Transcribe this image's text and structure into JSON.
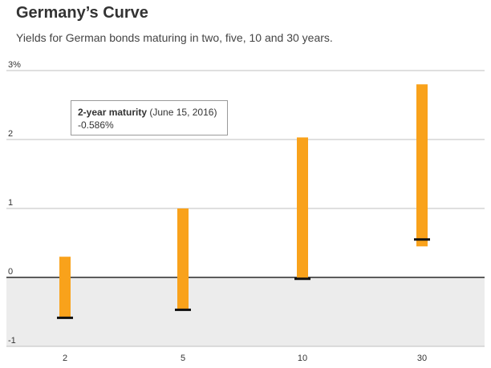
{
  "header": {
    "title": "Germany’s Curve",
    "subtitle": "Yields for German bonds maturing in two, five, 10 and 30 years."
  },
  "tooltip": {
    "label": "2-year maturity",
    "date": "(June 15, 2016)",
    "value": "-0.586%"
  },
  "colors": {
    "range_bar": "#f9a21b",
    "marker": "#111111",
    "negative_band": "#ececec",
    "gridline": "#bfbfbf",
    "zero_line": "#000000"
  },
  "chart_data": {
    "type": "bar",
    "subtype": "range-with-marker",
    "title": "Germany’s Curve",
    "subtitle": "Yields for German bonds maturing in two, five, 10 and 30 years.",
    "categories": [
      "2",
      "5",
      "10",
      "30"
    ],
    "series": [
      {
        "field": "low",
        "values": [
          -0.586,
          -0.47,
          -0.02,
          0.45
        ]
      },
      {
        "field": "high",
        "values": [
          0.3,
          1.0,
          2.03,
          2.8
        ]
      },
      {
        "field": "current",
        "values": [
          -0.586,
          -0.47,
          -0.02,
          0.55
        ]
      }
    ],
    "y_ticks": [
      "3%",
      "2",
      "1",
      "0",
      "-1"
    ],
    "y_tick_values": [
      3,
      2,
      1,
      0,
      -1
    ],
    "ylim": [
      -1,
      3
    ],
    "xlabel": "",
    "ylabel": "",
    "grid": true,
    "negative_region_shaded": true
  }
}
